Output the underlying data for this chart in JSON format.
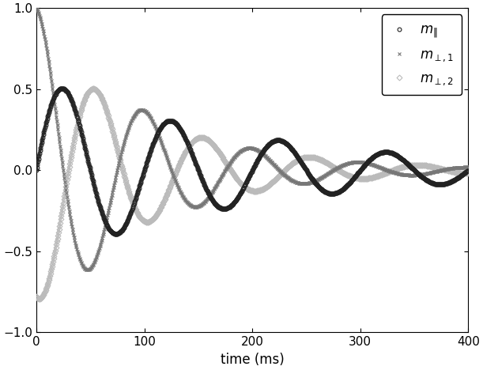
{
  "title": "",
  "xlabel": "time (ms)",
  "ylabel": "",
  "xlim": [
    0,
    400
  ],
  "ylim": [
    -1,
    1
  ],
  "xticks": [
    0,
    100,
    200,
    300,
    400
  ],
  "yticks": [
    -1,
    -0.5,
    0,
    0.5,
    1
  ],
  "m_parallel_color": "#222222",
  "m_perp1_color": "#777777",
  "m_perp2_color": "#bbbbbb",
  "background_color": "#ffffff",
  "figsize": [
    6.11,
    4.68
  ],
  "dpi": 100
}
